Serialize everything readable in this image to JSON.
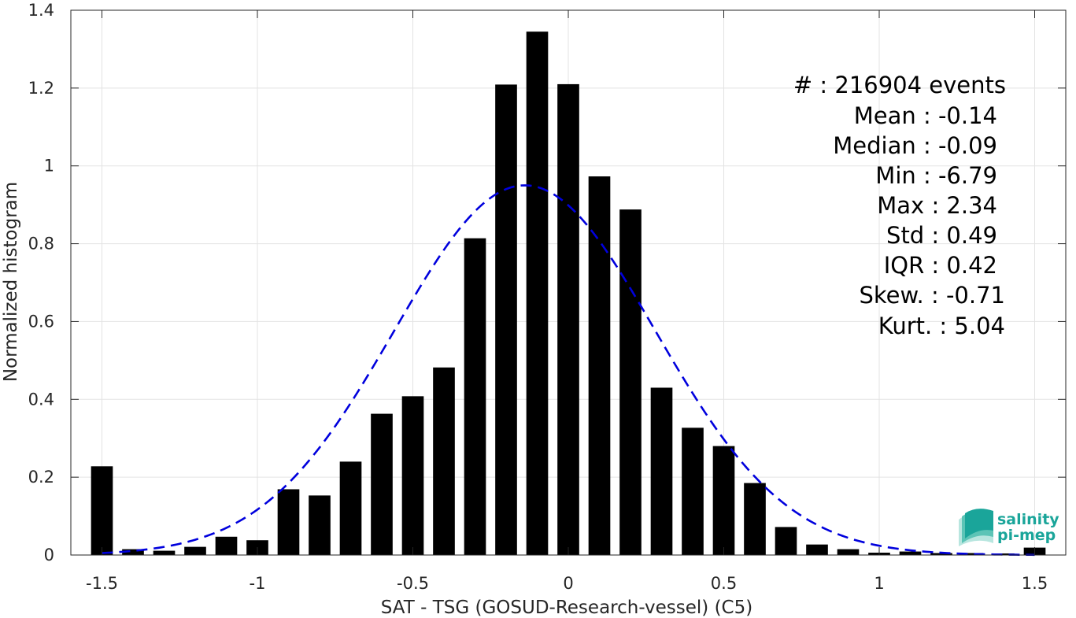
{
  "chart_data": {
    "type": "bar",
    "xlabel": "SAT - TSG (GOSUD-Research-vessel) (C5)",
    "ylabel": "Normalized histogram",
    "xlim": [
      -1.6,
      1.6
    ],
    "ylim": [
      0,
      1.4
    ],
    "x_ticks": [
      -1.5,
      -1,
      -0.5,
      0,
      0.5,
      1,
      1.5
    ],
    "x_tick_labels": [
      "-1.5",
      "-1",
      "-0.5",
      "0",
      "0.5",
      "1",
      "1.5"
    ],
    "y_ticks": [
      0,
      0.2,
      0.4,
      0.6,
      0.8,
      1,
      1.2,
      1.4
    ],
    "y_tick_labels": [
      "0",
      "0.2",
      "0.4",
      "0.6",
      "0.8",
      "1",
      "1.2",
      "1.4"
    ],
    "grid": true,
    "bar_width": 0.07,
    "bar_color": "#000000",
    "x": [
      -1.5,
      -1.4,
      -1.3,
      -1.2,
      -1.1,
      -1.0,
      -0.9,
      -0.8,
      -0.7,
      -0.6,
      -0.5,
      -0.4,
      -0.3,
      -0.2,
      -0.1,
      0.0,
      0.1,
      0.2,
      0.3,
      0.4,
      0.5,
      0.6,
      0.7,
      0.8,
      0.9,
      1.0,
      1.1,
      1.2,
      1.3,
      1.4,
      1.5
    ],
    "values": [
      0.228,
      0.015,
      0.011,
      0.021,
      0.047,
      0.038,
      0.169,
      0.153,
      0.24,
      0.363,
      0.408,
      0.482,
      0.814,
      1.209,
      1.345,
      1.21,
      0.973,
      0.888,
      0.43,
      0.327,
      0.28,
      0.185,
      0.072,
      0.027,
      0.015,
      0.006,
      0.009,
      0.005,
      0.005,
      0.004,
      0.019
    ],
    "fit_curve": {
      "style": "dashed",
      "color": "#0000dd",
      "mean": -0.14,
      "std": 0.42,
      "peak": 0.95
    },
    "annotations": [
      "#  : 216904 events",
      "Mean : -0.14",
      "Median : -0.09",
      "Min : -6.79",
      "Max : 2.34",
      "Std : 0.49",
      "IQR : 0.42",
      "Skew. : -0.71",
      "Kurt. : 5.04"
    ]
  },
  "logo": {
    "line1": "salinity",
    "line2": "pi-mep",
    "color": "#1aa59a"
  }
}
